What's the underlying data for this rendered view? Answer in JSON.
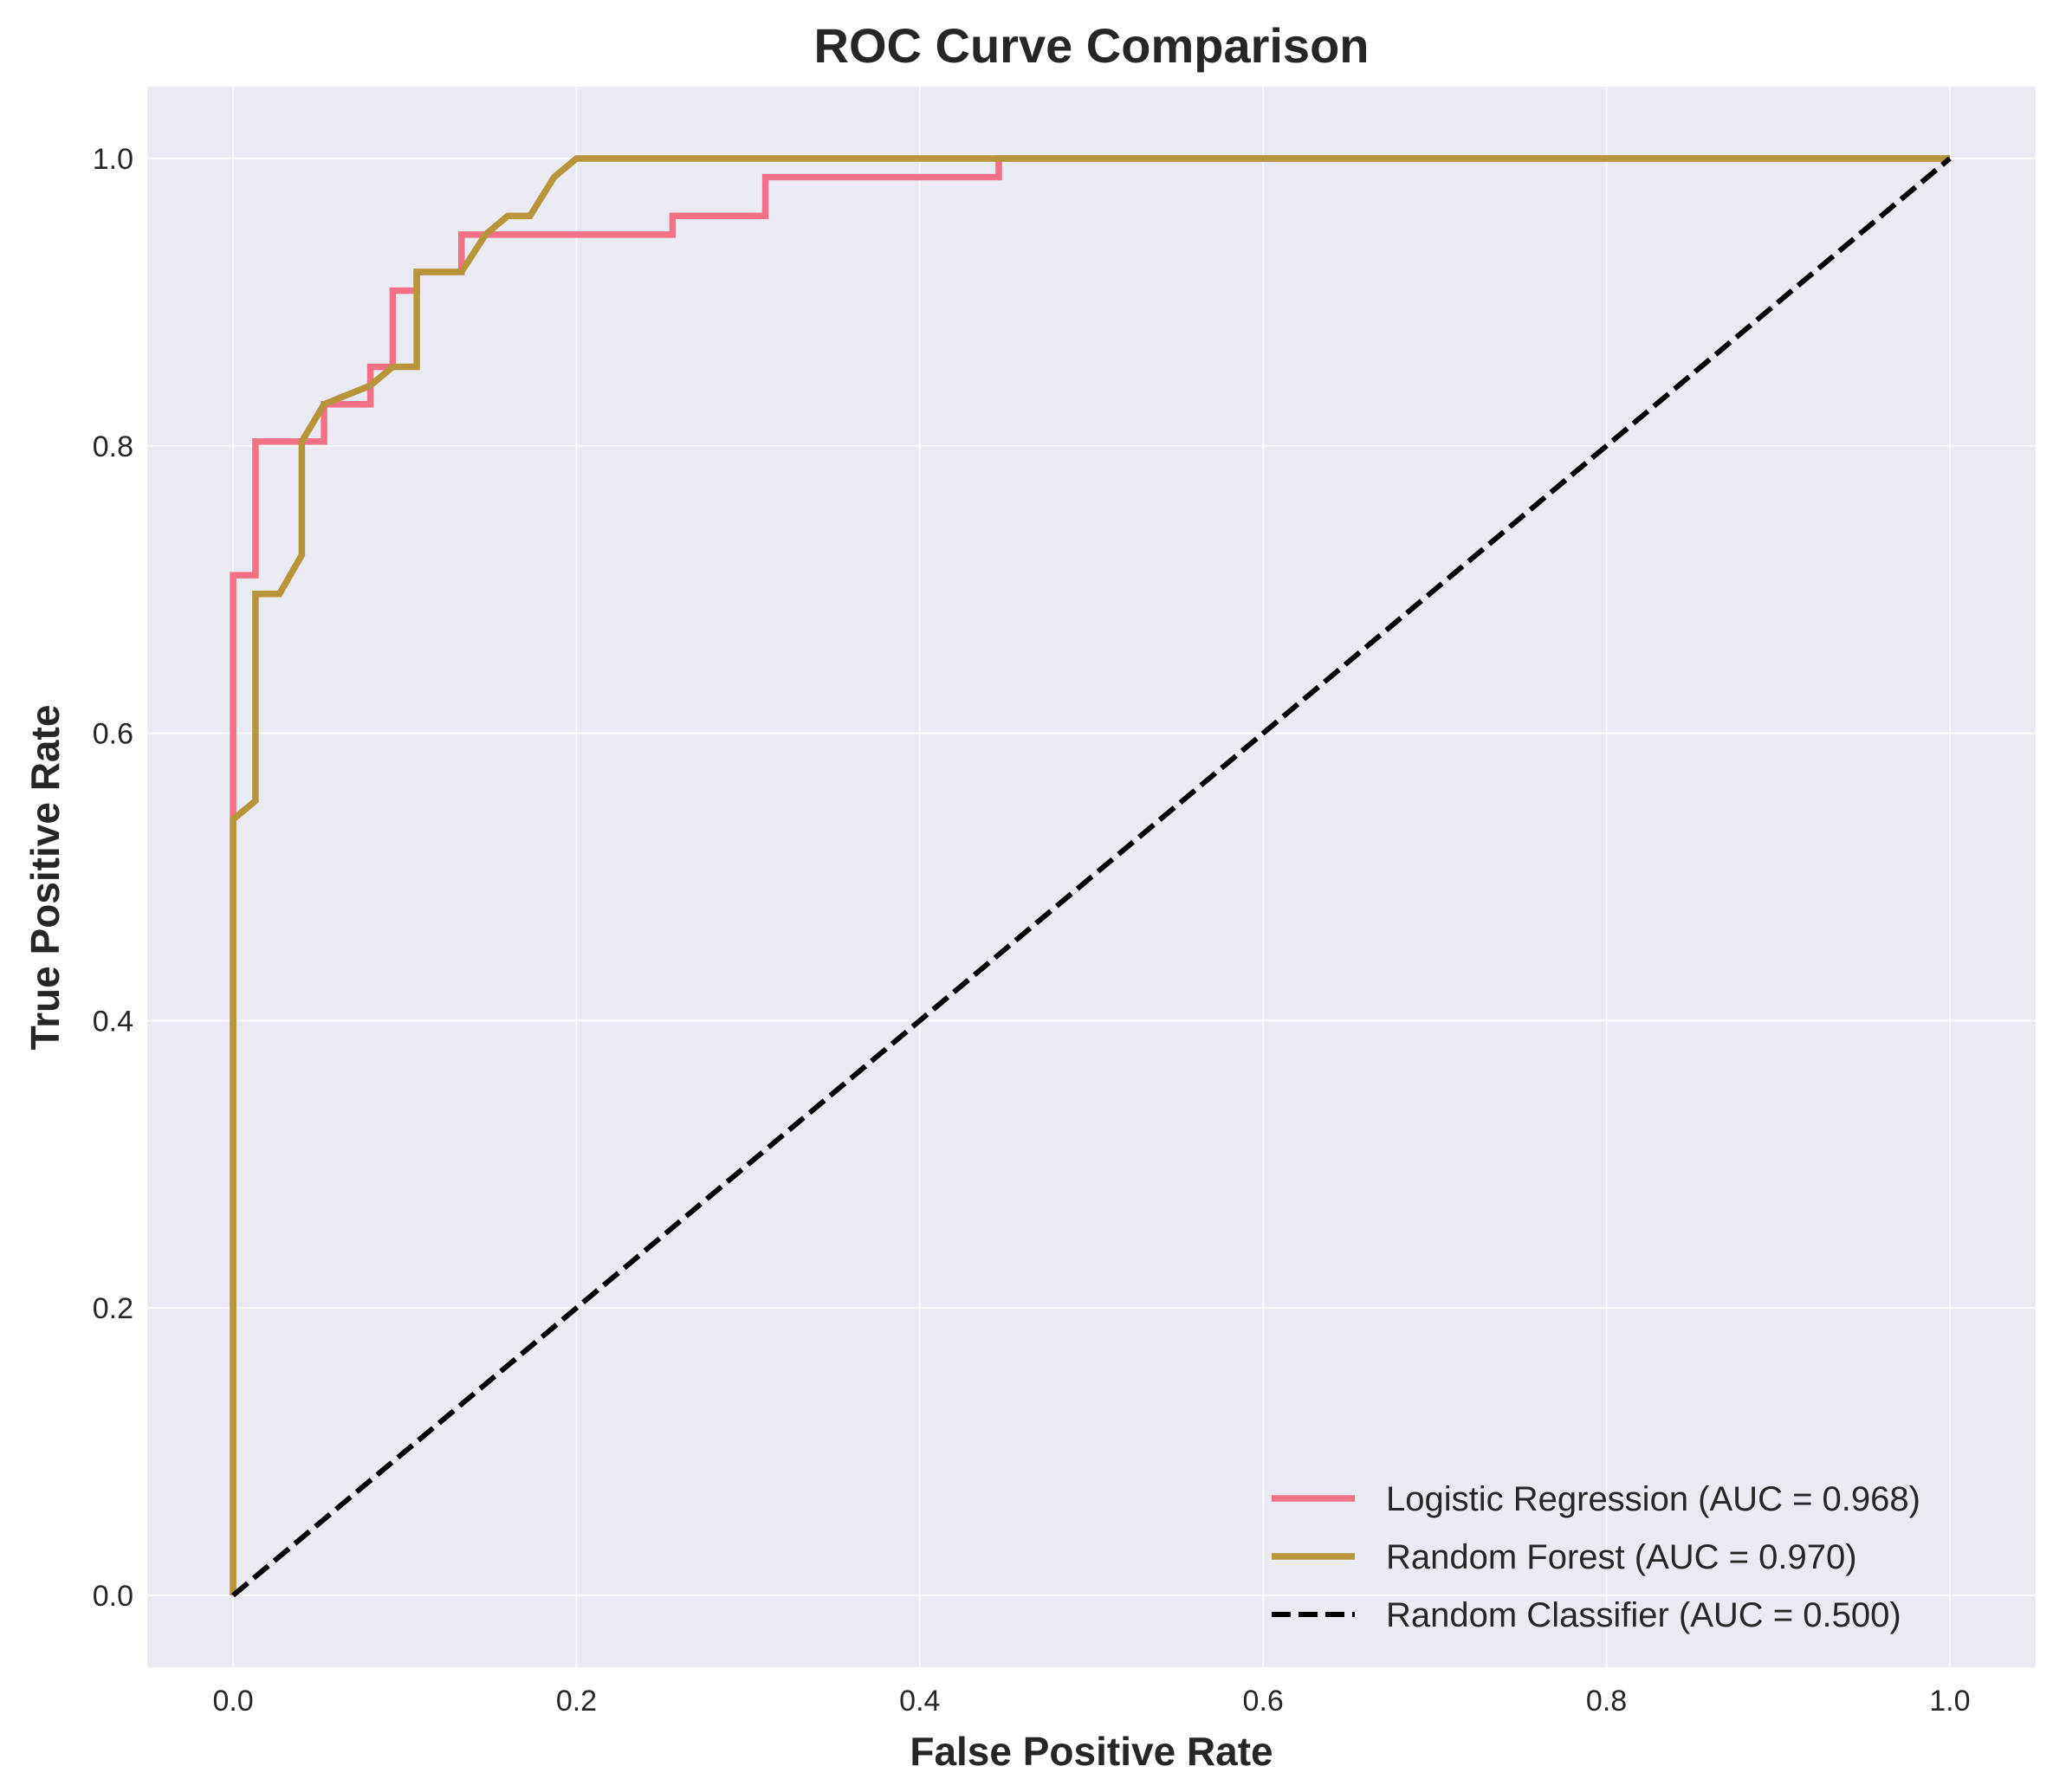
{
  "chart_data": {
    "type": "line",
    "title": "ROC Curve Comparison",
    "xlabel": "False Positive Rate",
    "ylabel": "True Positive Rate",
    "xlim": [
      -0.05,
      1.05
    ],
    "ylim": [
      -0.05,
      1.05
    ],
    "xticks": [
      "0.0",
      "0.2",
      "0.4",
      "0.6",
      "0.8",
      "1.0"
    ],
    "yticks": [
      "0.0",
      "0.2",
      "0.4",
      "0.6",
      "0.8",
      "1.0"
    ],
    "grid": true,
    "legend_position": "lower-right",
    "series": [
      {
        "name": "Logistic Regression (AUC = 0.968)",
        "color": "#f37086",
        "dashed": false,
        "x": [
          0,
          0,
          0,
          0.013,
          0.013,
          0.053,
          0.053,
          0.08,
          0.08,
          0.093,
          0.093,
          0.107,
          0.107,
          0.133,
          0.133,
          0.2,
          0.256,
          0.256,
          0.31,
          0.31,
          0.446,
          0.446,
          1.0
        ],
        "y": [
          0,
          0.54,
          0.71,
          0.71,
          0.803,
          0.803,
          0.829,
          0.829,
          0.855,
          0.855,
          0.908,
          0.908,
          0.921,
          0.921,
          0.947,
          0.947,
          0.947,
          0.96,
          0.96,
          0.987,
          0.987,
          1.0,
          1.0
        ]
      },
      {
        "name": "Random Forest (AUC = 0.970)",
        "color": "#b8943a",
        "dashed": false,
        "x": [
          0,
          0,
          0.013,
          0.013,
          0.027,
          0.04,
          0.04,
          0.053,
          0.08,
          0.093,
          0.107,
          0.107,
          0.133,
          0.147,
          0.16,
          0.173,
          0.187,
          0.2,
          1.0
        ],
        "y": [
          0,
          0.54,
          0.553,
          0.697,
          0.697,
          0.724,
          0.803,
          0.829,
          0.842,
          0.855,
          0.855,
          0.921,
          0.921,
          0.947,
          0.96,
          0.96,
          0.987,
          1.0,
          1.0
        ]
      },
      {
        "name": "Random Classifier (AUC = 0.500)",
        "color": "#000000",
        "dashed": true,
        "x": [
          0,
          1
        ],
        "y": [
          0,
          1
        ]
      }
    ]
  }
}
